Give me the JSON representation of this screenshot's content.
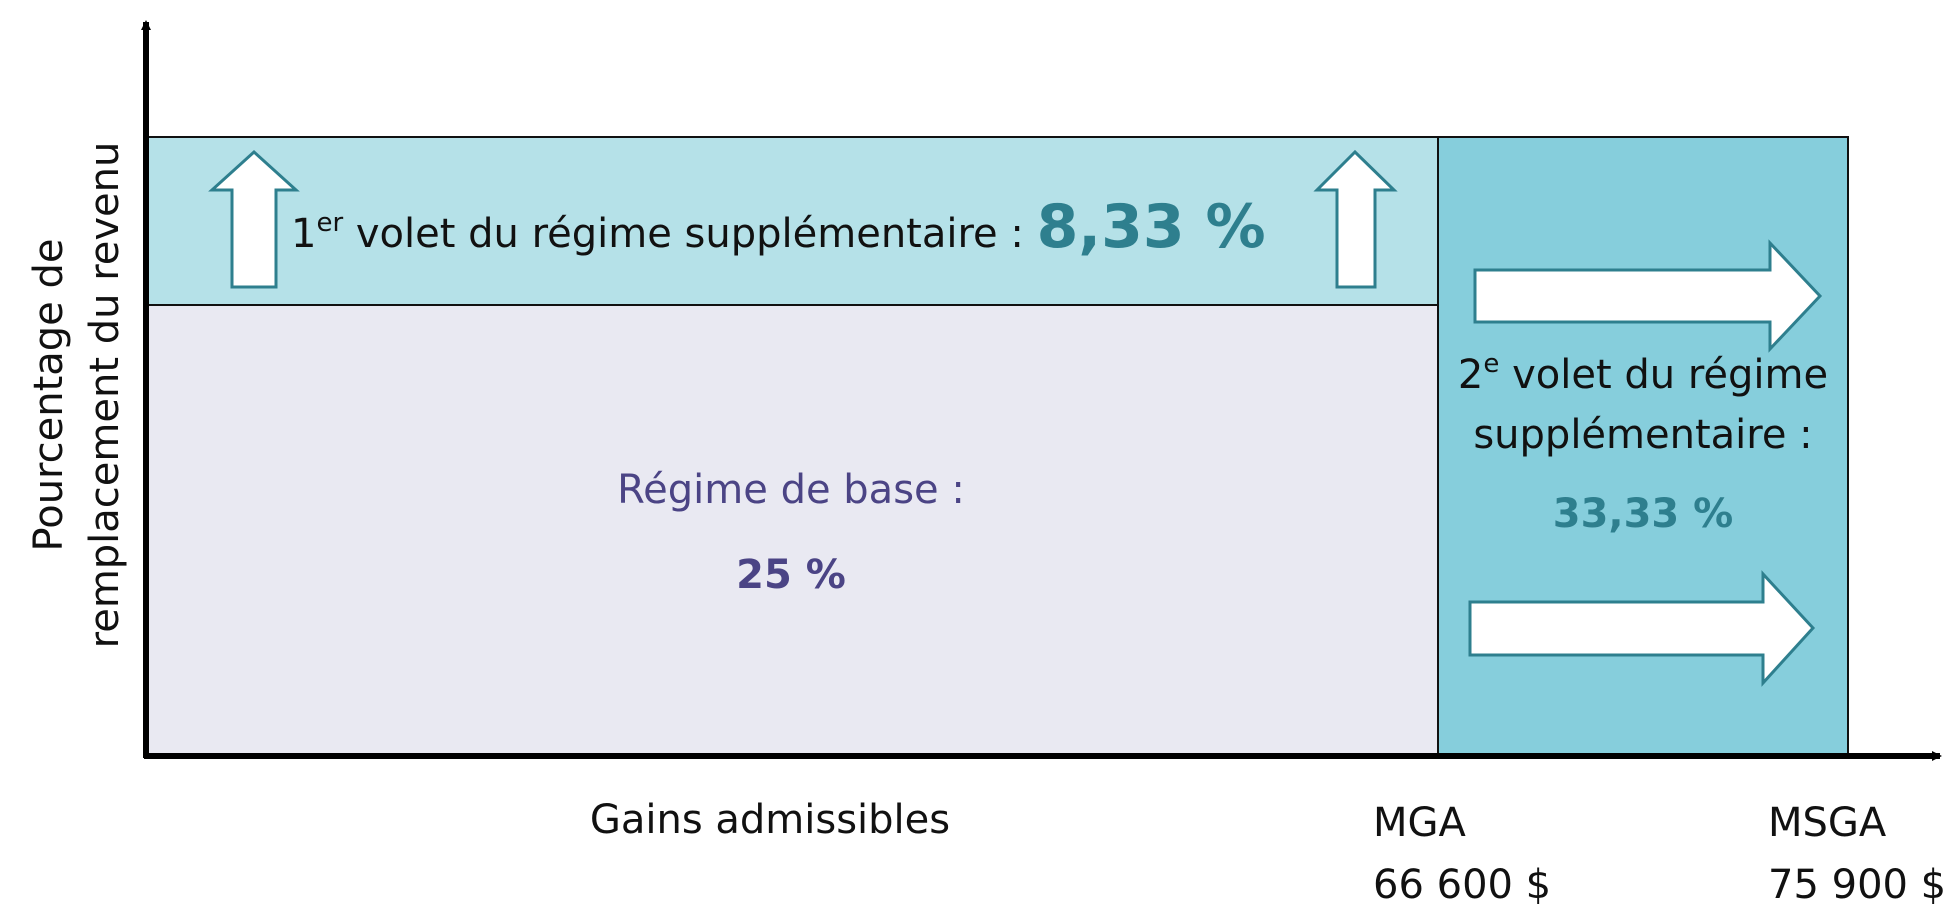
{
  "y_axis_label": [
    "Pourcentage de",
    "remplacement du revenu"
  ],
  "x_axis_label": "Gains admissibles",
  "regions": {
    "base": {
      "label": "Régime de base :",
      "value": "25 %"
    },
    "tier1": {
      "number": "1",
      "sup": "er",
      "label": " volet du régime supplémentaire : ",
      "value": "8,33 %"
    },
    "tier2": {
      "number": "2",
      "sup": "e",
      "label_lines": [
        " volet du régime",
        "supplémentaire :"
      ],
      "value": "33,33 %"
    }
  },
  "markers": [
    {
      "name": "MGA",
      "amount": "66 600 $"
    },
    {
      "name": "MSGA",
      "amount": "75 900 $"
    }
  ]
}
